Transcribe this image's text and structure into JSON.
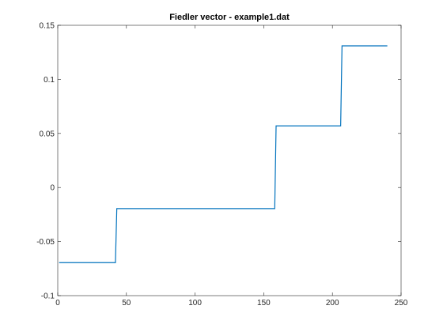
{
  "chart_data": {
    "type": "line",
    "title": "Fiedler vector - example1.dat",
    "xlabel": "",
    "ylabel": "",
    "xlim": [
      0,
      250
    ],
    "ylim": [
      -0.1,
      0.15
    ],
    "xticks": [
      0,
      50,
      100,
      150,
      200,
      250
    ],
    "xtick_labels": [
      "0",
      "50",
      "100",
      "150",
      "200",
      "250"
    ],
    "yticks": [
      -0.1,
      -0.05,
      0,
      0.05,
      0.1,
      0.15
    ],
    "ytick_labels": [
      "-0.1",
      "-0.05",
      "0",
      "0.05",
      "0.1",
      "0.15"
    ],
    "grid": false,
    "legend": "none",
    "series": [
      {
        "color": "#0072bd",
        "x": [
          1,
          42,
          43,
          158,
          159,
          206,
          207,
          240
        ],
        "y": [
          -0.0695,
          -0.0695,
          -0.0195,
          -0.0195,
          0.057,
          0.057,
          0.131,
          0.131
        ]
      }
    ]
  }
}
